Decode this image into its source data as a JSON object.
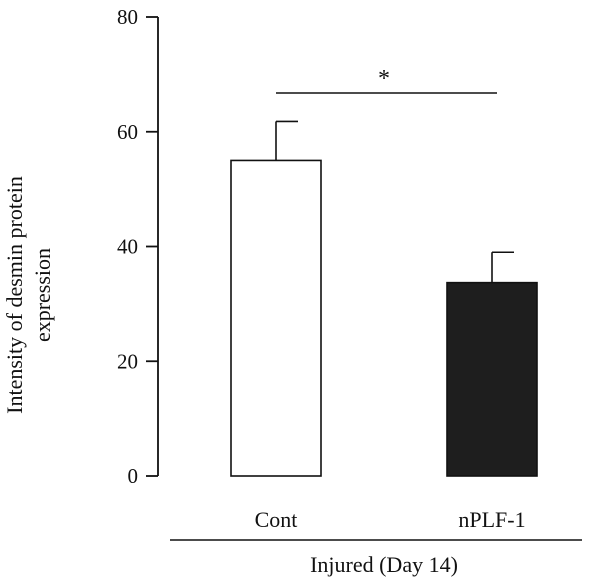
{
  "chart_data": {
    "type": "bar",
    "title": "",
    "ylabel_lines": [
      "Intensity of desmin protein",
      "expression"
    ],
    "xlabel": "",
    "group_label": "Injured (Day 14)",
    "categories": [
      "Cont",
      "nPLF-1"
    ],
    "values": [
      55,
      33.7
    ],
    "error_upper": [
      61.8,
      39
    ],
    "bar_fills": [
      "#ffffff",
      "#1e1e1e"
    ],
    "ylim": [
      0,
      80
    ],
    "yticks": [
      "0",
      "20",
      "40",
      "60",
      "80"
    ],
    "significance": {
      "label": "*",
      "between": [
        0,
        1
      ]
    },
    "grid": false,
    "legend": "none"
  }
}
